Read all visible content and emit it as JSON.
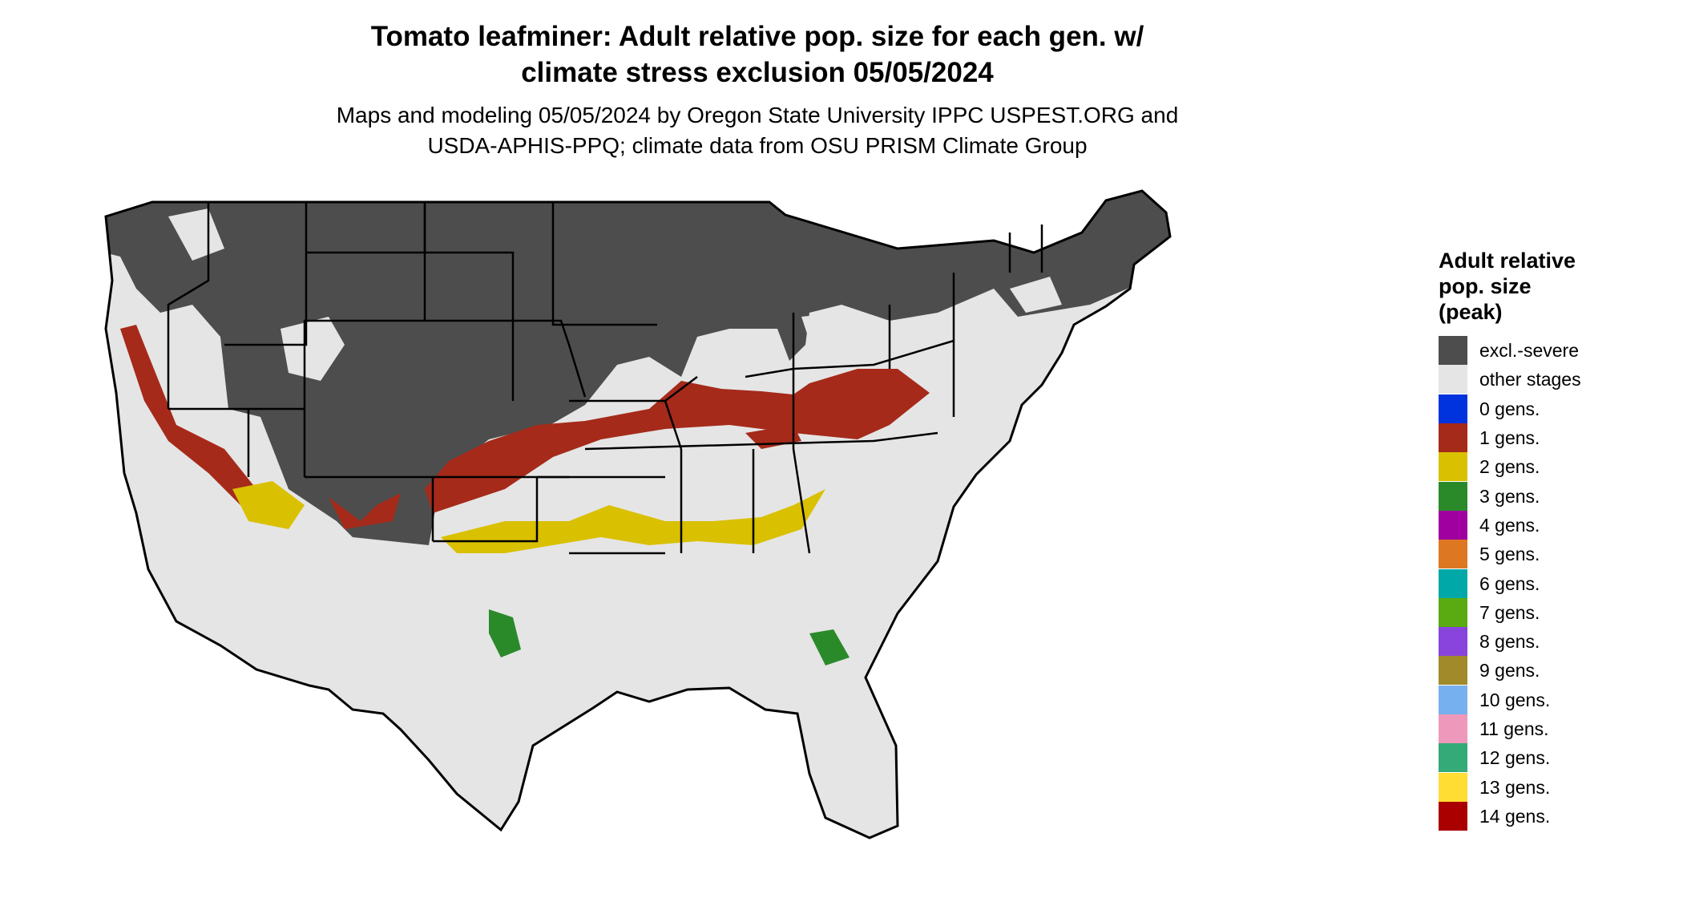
{
  "title": {
    "line1": "Tomato leafminer: Adult relative pop. size for each gen. w/",
    "line2": "climate stress exclusion 05/05/2024"
  },
  "subtitle": {
    "line1": "Maps and modeling 05/05/2024 by Oregon State University IPPC USPEST.ORG and",
    "line2": "USDA-APHIS-PPQ; climate data from OSU PRISM Climate Group"
  },
  "legend": {
    "title_lines": [
      "Adult relative",
      "pop. size",
      "(peak)"
    ],
    "items": [
      {
        "label": "excl.-severe",
        "color": "#4d4d4d"
      },
      {
        "label": "other stages",
        "color": "#e5e5e5"
      },
      {
        "label": "0 gens.",
        "color": "#0033dd"
      },
      {
        "label": "1 gens.",
        "color": "#a52a1a"
      },
      {
        "label": "2 gens.",
        "color": "#d9c000"
      },
      {
        "label": "3 gens.",
        "color": "#2a8a2a"
      },
      {
        "label": "4 gens.",
        "color": "#a000a0"
      },
      {
        "label": "5 gens.",
        "color": "#dd7722"
      },
      {
        "label": "6 gens.",
        "color": "#00a8a8"
      },
      {
        "label": "7 gens.",
        "color": "#5aaa11"
      },
      {
        "label": "8 gens.",
        "color": "#8844dd"
      },
      {
        "label": "9 gens.",
        "color": "#a08a2a"
      },
      {
        "label": "10 gens.",
        "color": "#77b0ee"
      },
      {
        "label": "11 gens.",
        "color": "#ee99bb"
      },
      {
        "label": "12 gens.",
        "color": "#33aa77"
      },
      {
        "label": "13 gens.",
        "color": "#ffdd33"
      },
      {
        "label": "14 gens.",
        "color": "#aa0000"
      }
    ]
  },
  "map": {
    "region": "contiguous-united-states",
    "background_color": "#e5e5e5",
    "excluded_color": "#4d4d4d",
    "border_color": "#000000"
  }
}
